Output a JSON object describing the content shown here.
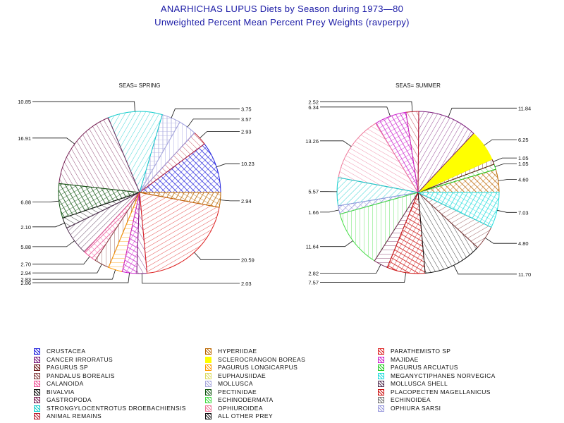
{
  "title": "ANARHICHAS LUPUS Diets by Season during 1973—80",
  "subtitle": "Unweighted Percent Mean Percent Prey  Weights (ravperpy)",
  "chart_data": [
    {
      "type": "pie",
      "title": "SEAS= SPRING",
      "slices": [
        {
          "name": "CRUSTACEA",
          "value": 10.23
        },
        {
          "name": "ANIMAL REMAINS",
          "value": 2.93
        },
        {
          "name": "OPHIURA SARSI",
          "value": 3.57
        },
        {
          "name": "MOLLUSCA",
          "value": 3.75
        },
        {
          "name": "STRONGYLOCENTROTUS DROEBACHIENSIS",
          "value": 10.85
        },
        {
          "name": "GASTROPODA",
          "value": 16.91
        },
        {
          "name": "PECTINIDAE",
          "value": 6.88
        },
        {
          "name": "BIVALVIA",
          "value": 2.1
        },
        {
          "name": "MOLLUSCA SHELL",
          "value": 5.88
        },
        {
          "name": "CALANOIDA",
          "value": 2.7
        },
        {
          "name": "PANDALUS BOREALIS",
          "value": 2.94
        },
        {
          "name": "PAGURUS LONGICARPUS",
          "value": 2.83
        },
        {
          "name": "MAJIDAE",
          "value": 2.86
        },
        {
          "name": "CANCER IRRORATUS",
          "value": 2.03
        },
        {
          "name": "PARATHEMISTO SP",
          "value": 20.59
        },
        {
          "name": "HYPERIIDAE",
          "value": 2.94
        }
      ]
    },
    {
      "type": "pie",
      "title": "SEAS= SUMMER",
      "slices": [
        {
          "name": "HYPERIIDAE",
          "value": 4.6
        },
        {
          "name": "PAGURUS ARCUATUS",
          "value": 1.05
        },
        {
          "name": "PAGURUS SP",
          "value": 1.05
        },
        {
          "name": "SCLEROCRANGON BOREAS",
          "value": 6.25
        },
        {
          "name": "CANCER IRRORATUS",
          "value": 11.84
        },
        {
          "name": "ANIMAL REMAINS",
          "value": 2.52
        },
        {
          "name": "MAJIDAE",
          "value": 6.34
        },
        {
          "name": "OPHIUROIDEA",
          "value": 13.26
        },
        {
          "name": "STRONGYLOCENTROTUS DROEBACHIENSIS",
          "value": 5.57
        },
        {
          "name": "OPHIURA SARSI",
          "value": 1.66
        },
        {
          "name": "ECHINODERMATA",
          "value": 11.64
        },
        {
          "name": "GASTROPODA",
          "value": 2.82
        },
        {
          "name": "PLACOPECTEN MAGELLANICUS",
          "value": 7.57
        },
        {
          "name": "BIVALVIA",
          "value": 11.7
        },
        {
          "name": "PANDALUS BOREALIS",
          "value": 4.8
        },
        {
          "name": "MEGANYCTIPHANES NORVEGICA",
          "value": 7.03
        }
      ]
    }
  ],
  "legend": [
    {
      "name": "CRUSTACEA",
      "color": "#2222dd"
    },
    {
      "name": "HYPERIIDAE",
      "color": "#bb6600"
    },
    {
      "name": "PARATHEMISTO SP",
      "color": "#dd2222"
    },
    {
      "name": "CANCER IRRORATUS",
      "color": "#7a1a7a"
    },
    {
      "name": "SCLEROCRANGON BOREAS",
      "color": "#ffff00"
    },
    {
      "name": "MAJIDAE",
      "color": "#cc22cc"
    },
    {
      "name": "PAGURUS SP",
      "color": "#661111"
    },
    {
      "name": "PAGURUS LONGICARPUS",
      "color": "#ff9900"
    },
    {
      "name": "PAGURUS ARCUATUS",
      "color": "#22cc22"
    },
    {
      "name": "PANDALUS BOREALIS",
      "color": "#884444"
    },
    {
      "name": "EUPHAUSIIDAE",
      "color": "#dddd66"
    },
    {
      "name": "MEGANYCTIPHANES NORVEGICA",
      "color": "#22dddd"
    },
    {
      "name": "CALANOIDA",
      "color": "#ee5599"
    },
    {
      "name": "MOLLUSCA",
      "color": "#aaaadd"
    },
    {
      "name": "MOLLUSCA SHELL",
      "color": "#553355"
    },
    {
      "name": "BIVALVIA",
      "color": "#111111"
    },
    {
      "name": "PECTINIDAE",
      "color": "#115511"
    },
    {
      "name": "PLACOPECTEN MAGELLANICUS",
      "color": "#cc1111"
    },
    {
      "name": "GASTROPODA",
      "color": "#772255"
    },
    {
      "name": "ECHINODERMATA",
      "color": "#44dd44"
    },
    {
      "name": "ECHINOIDEA",
      "color": "#777777"
    },
    {
      "name": "STRONGYLOCENTROTUS DROEBACHIENSIS",
      "color": "#11cccc"
    },
    {
      "name": "OPHIUROIDEA",
      "color": "#ee7799"
    },
    {
      "name": "OPHIURA SARSI",
      "color": "#9999dd"
    },
    {
      "name": "ANIMAL REMAINS",
      "color": "#bb2233"
    },
    {
      "name": "ALL OTHER PREY",
      "color": "#111111"
    }
  ]
}
